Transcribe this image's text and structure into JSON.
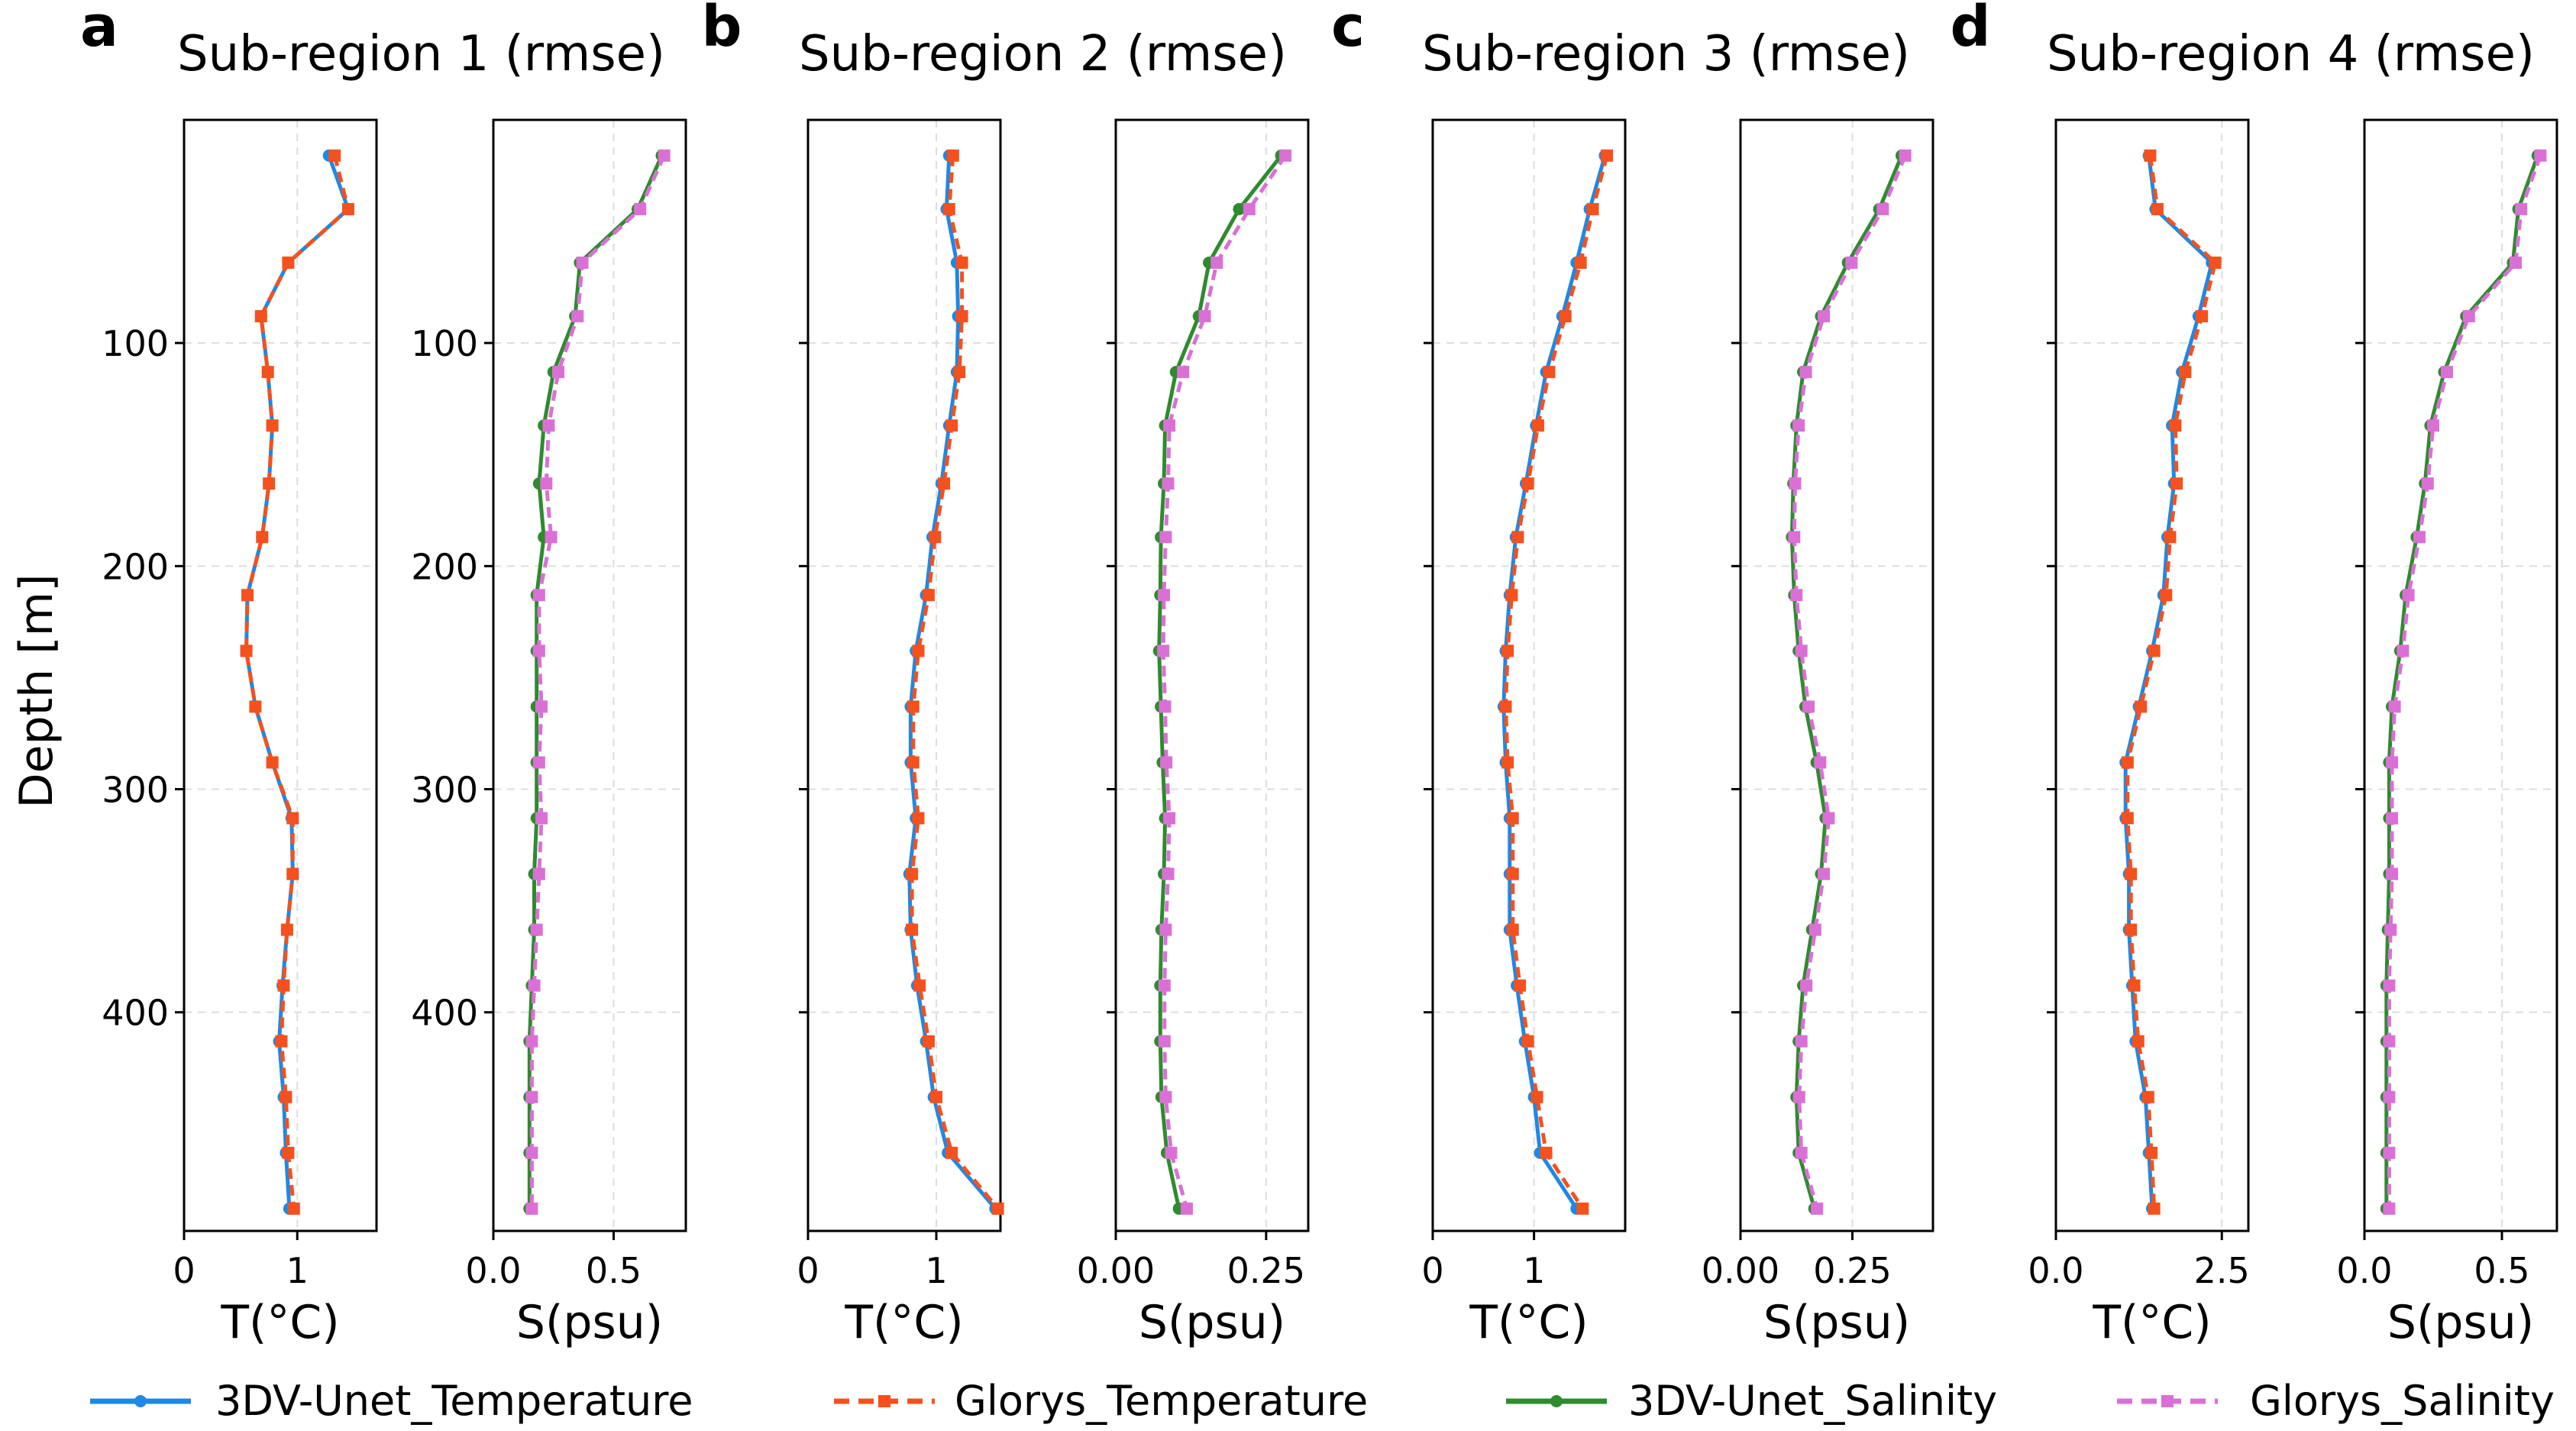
{
  "depths": [
    16,
    40,
    64,
    88,
    113,
    137,
    163,
    187,
    213,
    238,
    263,
    288,
    313,
    338,
    363,
    388,
    413,
    438,
    463,
    488
  ],
  "ylabel": "Depth [m]",
  "yticks": [
    100,
    200,
    300,
    400
  ],
  "ylim": [
    0,
    498
  ],
  "legend": [
    "3DV-Unet_Temperature",
    "Glorys_Temperature",
    "3DV-Unet_Salinity",
    "Glorys_Salinity"
  ],
  "colors": {
    "unet_t": "#1e88e5",
    "glorys_t": "#f4511e",
    "unet_s": "#2e8b2e",
    "glorys_s": "#da70d6",
    "grid": "#dddddd"
  },
  "chart_data": [
    {
      "type": "line",
      "panel": "a",
      "title": "Sub-region 1 (rmse)",
      "temperature": {
        "xlabel": "T(°C)",
        "xlim": [
          0,
          1.7
        ],
        "xticks": [
          0,
          1
        ],
        "xtick_labels": [
          "0",
          "1"
        ],
        "series": [
          {
            "name": "3DV-Unet_Temperature",
            "values": [
              1.28,
              1.45,
              0.92,
              0.68,
              0.74,
              0.78,
              0.75,
              0.69,
              0.56,
              0.55,
              0.63,
              0.78,
              0.95,
              0.96,
              0.91,
              0.87,
              0.84,
              0.88,
              0.9,
              0.93
            ]
          },
          {
            "name": "Glorys_Temperature",
            "values": [
              1.33,
              1.45,
              0.92,
              0.68,
              0.74,
              0.78,
              0.75,
              0.69,
              0.56,
              0.55,
              0.63,
              0.78,
              0.96,
              0.96,
              0.91,
              0.88,
              0.86,
              0.9,
              0.92,
              0.97
            ]
          }
        ]
      },
      "salinity": {
        "xlabel": "S(psu)",
        "xlim": [
          0,
          0.8
        ],
        "xticks": [
          0,
          0.5
        ],
        "xtick_labels": [
          "0.0",
          "0.5"
        ],
        "series": [
          {
            "name": "3DV-Unet_Salinity",
            "values": [
              0.7,
              0.6,
              0.36,
              0.34,
              0.25,
              0.21,
              0.19,
              0.21,
              0.18,
              0.18,
              0.18,
              0.18,
              0.18,
              0.17,
              0.17,
              0.16,
              0.15,
              0.15,
              0.15,
              0.15
            ]
          },
          {
            "name": "Glorys_Salinity",
            "values": [
              0.71,
              0.61,
              0.37,
              0.35,
              0.27,
              0.23,
              0.22,
              0.24,
              0.19,
              0.19,
              0.2,
              0.19,
              0.2,
              0.19,
              0.18,
              0.17,
              0.16,
              0.16,
              0.16,
              0.16
            ]
          }
        ]
      }
    },
    {
      "type": "line",
      "panel": "b",
      "title": "Sub-region 2 (rmse)",
      "temperature": {
        "xlabel": "T(°C)",
        "xlim": [
          0,
          1.5
        ],
        "xticks": [
          0,
          1
        ],
        "xtick_labels": [
          "0",
          "1"
        ],
        "series": [
          {
            "name": "3DV-Unet_Temperature",
            "values": [
              1.1,
              1.08,
              1.16,
              1.17,
              1.16,
              1.1,
              1.04,
              0.97,
              0.92,
              0.84,
              0.8,
              0.8,
              0.84,
              0.79,
              0.8,
              0.85,
              0.92,
              0.98,
              1.09,
              1.46
            ]
          },
          {
            "name": "Glorys_Temperature",
            "values": [
              1.13,
              1.1,
              1.2,
              1.2,
              1.18,
              1.12,
              1.06,
              0.99,
              0.94,
              0.86,
              0.82,
              0.82,
              0.86,
              0.81,
              0.81,
              0.87,
              0.94,
              1.0,
              1.12,
              1.48
            ]
          }
        ]
      },
      "salinity": {
        "xlabel": "S(psu)",
        "xlim": [
          0,
          0.32
        ],
        "xticks": [
          0,
          0.25
        ],
        "xtick_labels": [
          "0.00",
          "0.25"
        ],
        "series": [
          {
            "name": "3DV-Unet_Salinity",
            "values": [
              0.275,
              0.205,
              0.155,
              0.138,
              0.1,
              0.082,
              0.08,
              0.075,
              0.074,
              0.072,
              0.075,
              0.078,
              0.082,
              0.08,
              0.076,
              0.074,
              0.074,
              0.076,
              0.085,
              0.105
            ]
          },
          {
            "name": "Glorys_Salinity",
            "values": [
              0.282,
              0.222,
              0.168,
              0.148,
              0.112,
              0.089,
              0.087,
              0.083,
              0.08,
              0.079,
              0.082,
              0.084,
              0.089,
              0.087,
              0.083,
              0.081,
              0.081,
              0.083,
              0.092,
              0.118
            ]
          }
        ]
      }
    },
    {
      "type": "line",
      "panel": "c",
      "title": "Sub-region 3 (rmse)",
      "temperature": {
        "xlabel": "T(°C)",
        "xlim": [
          0,
          1.9
        ],
        "xticks": [
          0,
          1
        ],
        "xtick_labels": [
          "0",
          "1"
        ],
        "series": [
          {
            "name": "3DV-Unet_Temperature",
            "values": [
              1.7,
              1.55,
              1.42,
              1.28,
              1.12,
              1.02,
              0.92,
              0.82,
              0.76,
              0.72,
              0.7,
              0.72,
              0.76,
              0.76,
              0.76,
              0.83,
              0.91,
              1.0,
              1.06,
              1.42
            ]
          },
          {
            "name": "Glorys_Temperature",
            "values": [
              1.72,
              1.58,
              1.46,
              1.31,
              1.15,
              1.04,
              0.94,
              0.84,
              0.78,
              0.74,
              0.72,
              0.74,
              0.79,
              0.79,
              0.79,
              0.86,
              0.94,
              1.03,
              1.12,
              1.48
            ]
          }
        ]
      },
      "salinity": {
        "xlabel": "S(psu)",
        "xlim": [
          0,
          0.43
        ],
        "xticks": [
          0,
          0.25
        ],
        "xtick_labels": [
          "0.00",
          "0.25"
        ],
        "series": [
          {
            "name": "3DV-Unet_Salinity",
            "values": [
              0.36,
              0.31,
              0.24,
              0.18,
              0.14,
              0.125,
              0.118,
              0.115,
              0.12,
              0.13,
              0.145,
              0.17,
              0.19,
              0.18,
              0.16,
              0.14,
              0.13,
              0.125,
              0.13,
              0.165
            ]
          },
          {
            "name": "Glorys_Salinity",
            "values": [
              0.368,
              0.318,
              0.248,
              0.186,
              0.146,
              0.13,
              0.122,
              0.12,
              0.125,
              0.136,
              0.152,
              0.178,
              0.197,
              0.186,
              0.167,
              0.147,
              0.136,
              0.131,
              0.136,
              0.171
            ]
          }
        ]
      }
    },
    {
      "type": "line",
      "panel": "d",
      "title": "Sub-region 4 (rmse)",
      "temperature": {
        "xlabel": "T(°C)",
        "xlim": [
          0,
          2.9
        ],
        "xticks": [
          0,
          2.5
        ],
        "xtick_labels": [
          "0.0",
          "2.5"
        ],
        "series": [
          {
            "name": "3DV-Unet_Temperature",
            "values": [
              1.4,
              1.5,
              2.35,
              2.15,
              1.9,
              1.75,
              1.78,
              1.68,
              1.62,
              1.45,
              1.25,
              1.05,
              1.05,
              1.1,
              1.1,
              1.15,
              1.2,
              1.35,
              1.4,
              1.45
            ]
          },
          {
            "name": "Glorys_Temperature",
            "values": [
              1.42,
              1.53,
              2.4,
              2.2,
              1.95,
              1.8,
              1.82,
              1.72,
              1.66,
              1.48,
              1.28,
              1.08,
              1.08,
              1.13,
              1.13,
              1.18,
              1.24,
              1.39,
              1.44,
              1.48
            ]
          }
        ]
      },
      "salinity": {
        "xlabel": "S(psu)",
        "xlim": [
          0,
          0.7
        ],
        "xticks": [
          0,
          0.5
        ],
        "xtick_labels": [
          "0.0",
          "0.5"
        ],
        "series": [
          {
            "name": "3DV-Unet_Salinity",
            "values": [
              0.63,
              0.56,
              0.54,
              0.37,
              0.29,
              0.24,
              0.22,
              0.19,
              0.15,
              0.13,
              0.1,
              0.09,
              0.09,
              0.09,
              0.085,
              0.08,
              0.08,
              0.08,
              0.08,
              0.08
            ]
          },
          {
            "name": "Glorys_Salinity",
            "values": [
              0.64,
              0.57,
              0.55,
              0.38,
              0.3,
              0.25,
              0.23,
              0.2,
              0.16,
              0.14,
              0.11,
              0.1,
              0.1,
              0.1,
              0.095,
              0.09,
              0.09,
              0.09,
              0.09,
              0.09
            ]
          }
        ]
      }
    }
  ]
}
